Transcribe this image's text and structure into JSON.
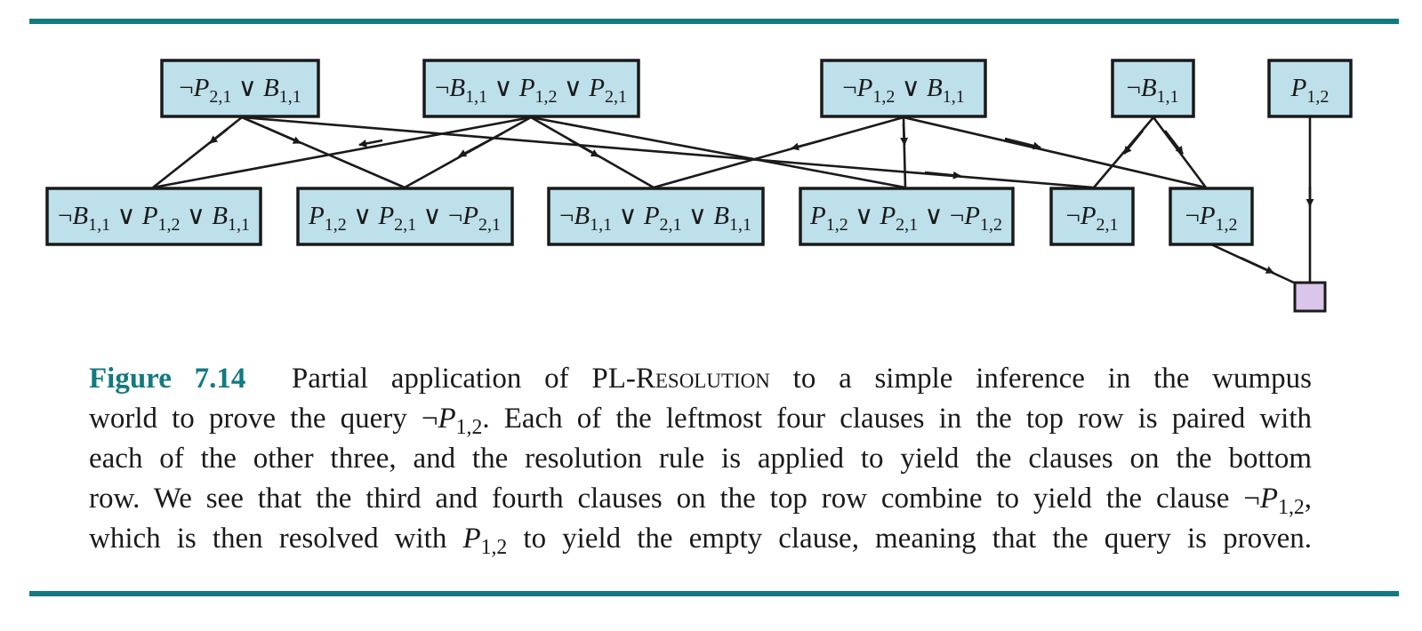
{
  "diagram": {
    "top_row": [
      "¬P2,1 ∨ B1,1",
      "¬B1,1 ∨ P1,2 ∨ P2,1",
      "¬P1,2 ∨ B1,1",
      "¬B1,1",
      "P1,2"
    ],
    "bottom_row": [
      "¬B1,1 ∨ P1,2 ∨ B1,1",
      "P1,2 ∨ P2,1 ∨ ¬P2,1",
      "¬B1,1 ∨ P2,1 ∨ B1,1",
      "P1,2 ∨ P2,1 ∨ ¬P1,2",
      "¬P2,1",
      "¬P1,2"
    ],
    "empty_clause": "",
    "colors": {
      "clause_fill": "#bde0ea",
      "empty_fill": "#d9c6ea",
      "rule": "#127a80"
    }
  },
  "caption": {
    "label": "Figure 7.14",
    "text": "Partial application of PL-Resolution to a simple inference in the wumpus world to prove the query ¬P1,2. Each of the leftmost four clauses in the top row is paired with each of the other three, and the resolution rule is applied to yield the clauses on the bottom row. We see that the third and fourth clauses on the top row combine to yield the clause ¬P1,2, which is then resolved with P1,2 to yield the empty clause, meaning that the query is proven."
  }
}
